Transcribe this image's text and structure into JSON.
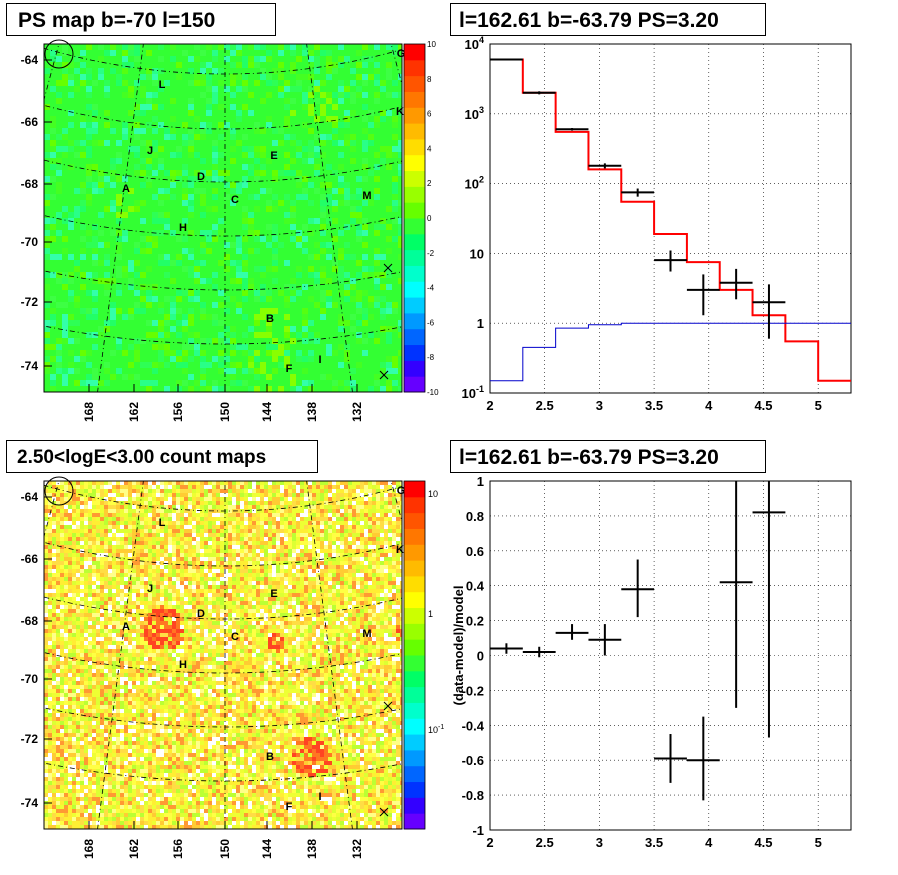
{
  "titles": {
    "ps_map": "PS map b=-70 l=150",
    "spectrum": "l=162.61 b=-63.79 PS=3.20",
    "count_map": "2.50<logE<3.00 count maps",
    "residual": "l=162.61 b=-63.79 PS=3.20"
  },
  "maps": {
    "lat_ticks": [
      "-64",
      "-66",
      "-68",
      "-70",
      "-72",
      "-74"
    ],
    "lon_ticks": [
      "168",
      "162",
      "156",
      "150",
      "144",
      "138",
      "132"
    ],
    "source_labels": [
      {
        "id": "G"
      },
      {
        "id": "L"
      },
      {
        "id": "K"
      },
      {
        "id": "J"
      },
      {
        "id": "E"
      },
      {
        "id": "D"
      },
      {
        "id": "A"
      },
      {
        "id": "C"
      },
      {
        "id": "M"
      },
      {
        "id": "H"
      },
      {
        "id": "B"
      },
      {
        "id": "I"
      },
      {
        "id": "F"
      }
    ],
    "ps_colorbar_ticks": [
      "10",
      "8",
      "6",
      "4",
      "2",
      "0",
      "-2",
      "-4",
      "-6",
      "-8",
      "-10"
    ],
    "count_colorbar_ticks": [
      "10",
      "1",
      "10-1"
    ]
  },
  "chart_data": [
    {
      "type": "line",
      "title": "l=162.61 b=-63.79 PS=3.20",
      "xlabel": "",
      "ylabel": "",
      "xlim": [
        2,
        5.3
      ],
      "ylim": [
        0.1,
        10000
      ],
      "yscale": "log",
      "grid": true,
      "x_ticks": [
        "2",
        "2.5",
        "3",
        "3.5",
        "4",
        "4.5",
        "5"
      ],
      "y_ticks": [
        {
          "v": 10000,
          "base": "10",
          "exp": "4"
        },
        {
          "v": 1000,
          "base": "10",
          "exp": "3"
        },
        {
          "v": 100,
          "base": "10",
          "exp": "2"
        },
        {
          "v": 10,
          "base": "10",
          "exp": ""
        },
        {
          "v": 1,
          "base": "1",
          "exp": ""
        },
        {
          "v": 0.1,
          "base": "10",
          "exp": "-1"
        }
      ],
      "series": [
        {
          "color": "#ff0000",
          "style": "step",
          "edges": [
            2,
            2.3,
            2.6,
            2.9,
            3.2,
            3.5,
            3.8,
            4.1,
            4.4,
            4.7,
            5.0,
            5.3
          ],
          "values": [
            6000,
            2000,
            550,
            160,
            55,
            19,
            7.5,
            3,
            1.3,
            0.55,
            0.15
          ]
        },
        {
          "color": "#0000cc",
          "style": "step",
          "edges": [
            2,
            2.3,
            2.6,
            2.9,
            3.2,
            3.5,
            3.8,
            4.1,
            4.4,
            4.7,
            5.0,
            5.3
          ],
          "values": [
            0.15,
            0.45,
            0.85,
            0.95,
            1,
            1,
            1,
            1,
            1,
            1,
            1
          ]
        },
        {
          "color": "#000000",
          "style": "points",
          "points": [
            {
              "x": 2.15,
              "y": 6000,
              "xerr": 0.15,
              "ylo": 5800,
              "yhi": 6200
            },
            {
              "x": 2.45,
              "y": 2000,
              "xerr": 0.15,
              "ylo": 1900,
              "yhi": 2100
            },
            {
              "x": 2.75,
              "y": 600,
              "xerr": 0.15,
              "ylo": 575,
              "yhi": 625
            },
            {
              "x": 3.05,
              "y": 180,
              "xerr": 0.15,
              "ylo": 165,
              "yhi": 195
            },
            {
              "x": 3.35,
              "y": 75,
              "xerr": 0.15,
              "ylo": 65,
              "yhi": 85
            },
            {
              "x": 3.65,
              "y": 8,
              "xerr": 0.15,
              "ylo": 5.5,
              "yhi": 11
            },
            {
              "x": 3.95,
              "y": 3,
              "xerr": 0.15,
              "ylo": 1.3,
              "yhi": 5
            },
            {
              "x": 4.25,
              "y": 3.8,
              "xerr": 0.15,
              "ylo": 2.2,
              "yhi": 6
            },
            {
              "x": 4.55,
              "y": 2,
              "xerr": 0.15,
              "ylo": 0.6,
              "yhi": 3.6
            }
          ]
        }
      ]
    },
    {
      "type": "scatter",
      "title": "l=162.61 b=-63.79 PS=3.20",
      "xlabel": "",
      "ylabel": "(data-model)/model",
      "xlim": [
        2,
        5.3
      ],
      "ylim": [
        -1,
        1
      ],
      "grid": true,
      "x_ticks": [
        "2",
        "2.5",
        "3",
        "3.5",
        "4",
        "4.5",
        "5"
      ],
      "y_ticks": [
        "1",
        "0.8",
        "0.6",
        "0.4",
        "0.2",
        "0",
        "-0.2",
        "-0.4",
        "-0.6",
        "-0.8",
        "-1"
      ],
      "points": [
        {
          "x": 2.15,
          "y": 0.04,
          "xerr": 0.15,
          "ylo": 0.01,
          "yhi": 0.07
        },
        {
          "x": 2.45,
          "y": 0.02,
          "xerr": 0.15,
          "ylo": -0.01,
          "yhi": 0.05
        },
        {
          "x": 2.75,
          "y": 0.13,
          "xerr": 0.15,
          "ylo": 0.09,
          "yhi": 0.18
        },
        {
          "x": 3.05,
          "y": 0.09,
          "xerr": 0.15,
          "ylo": 0.0,
          "yhi": 0.18
        },
        {
          "x": 3.35,
          "y": 0.38,
          "xerr": 0.15,
          "ylo": 0.22,
          "yhi": 0.55
        },
        {
          "x": 3.65,
          "y": -0.59,
          "xerr": 0.15,
          "ylo": -0.73,
          "yhi": -0.45
        },
        {
          "x": 3.95,
          "y": -0.6,
          "xerr": 0.15,
          "ylo": -0.83,
          "yhi": -0.35
        },
        {
          "x": 4.25,
          "y": 0.42,
          "xerr": 0.15,
          "ylo": -0.3,
          "yhi": 1.0
        },
        {
          "x": 4.55,
          "y": 0.82,
          "xerr": 0.15,
          "ylo": -0.47,
          "yhi": 1.0
        }
      ]
    }
  ]
}
